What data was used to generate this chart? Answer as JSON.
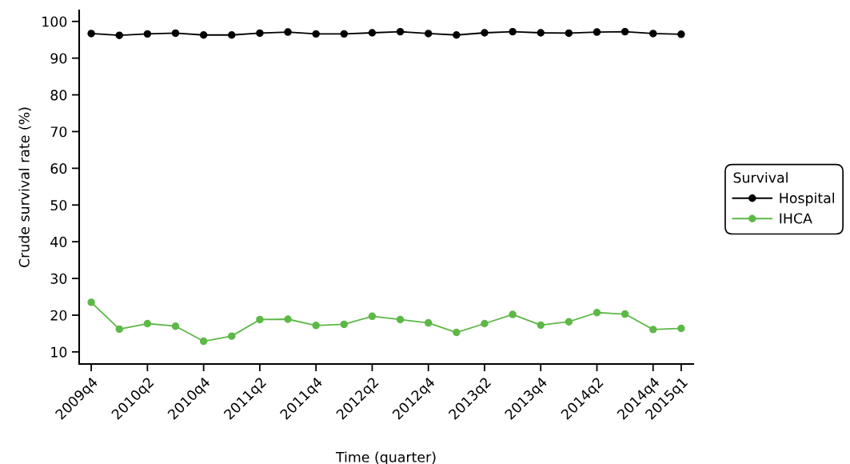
{
  "chart_data": {
    "type": "line",
    "xlabel": "Time (quarter)",
    "ylabel": "Crude survival rate (%)",
    "legend_title": "Survival",
    "categories": [
      "2009q4",
      null,
      "2010q2",
      null,
      "2010q4",
      null,
      "2011q2",
      null,
      "2011q4",
      null,
      "2012q2",
      null,
      "2012q4",
      null,
      "2013q2",
      null,
      "2013q4",
      null,
      "2014q2",
      null,
      "2014q4",
      "2015q1"
    ],
    "series": [
      {
        "name": "Hospital",
        "color": "#000000",
        "values": [
          96.7,
          96.2,
          96.6,
          96.8,
          96.3,
          96.3,
          96.8,
          97.1,
          96.6,
          96.6,
          96.9,
          97.2,
          96.7,
          96.3,
          96.9,
          97.2,
          96.9,
          96.8,
          97.1,
          97.2,
          96.7,
          96.5
        ]
      },
      {
        "name": "IHCA",
        "color": "#5db847",
        "values": [
          23.5,
          16.2,
          17.7,
          17.0,
          12.9,
          14.3,
          18.8,
          18.9,
          17.2,
          17.5,
          19.7,
          18.8,
          17.9,
          15.3,
          17.7,
          20.2,
          17.3,
          18.2,
          20.7,
          20.3,
          16.1,
          16.4
        ]
      }
    ],
    "ylim": [
      6.7,
      103
    ],
    "yticks": [
      10,
      20,
      30,
      40,
      50,
      60,
      70,
      80,
      90,
      100
    ],
    "legend": "right",
    "marker": "circle",
    "line_style": "solid"
  }
}
